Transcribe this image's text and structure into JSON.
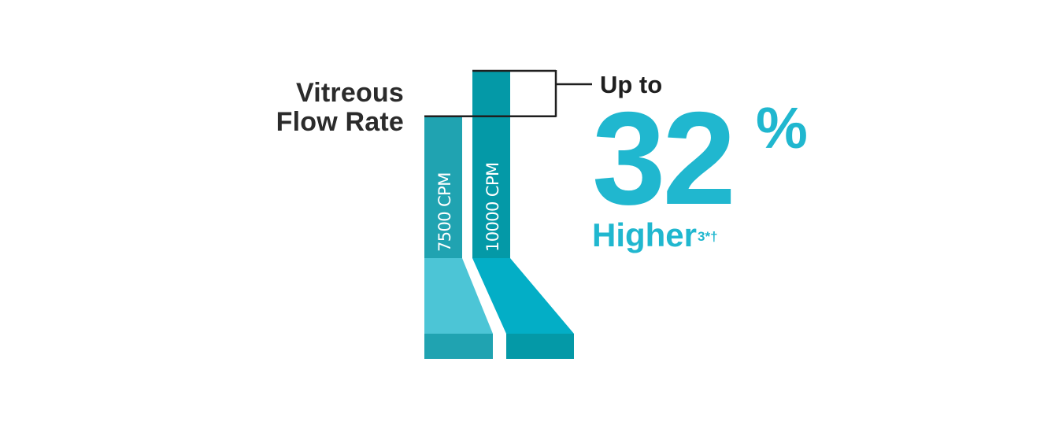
{
  "chart_data": {
    "type": "bar",
    "ylabel": [
      "Vitreous",
      "Flow Rate"
    ],
    "categories": [
      "7500 CPM",
      "10000 CPM"
    ],
    "values": [
      100,
      132
    ],
    "ylim": [
      0,
      132
    ],
    "grid": false,
    "colors": {
      "bar_dark": [
        "#20a3b1",
        "#0499a7"
      ],
      "bar_light": [
        "#4cc5d6",
        "#03aec6"
      ],
      "base": [
        "#20a3b1",
        "#0499a7"
      ],
      "accent": "#20b7cf",
      "bracket": "#1f1f1f"
    },
    "annotation": {
      "prefix": "Up to",
      "value": "32",
      "unit": "%",
      "suffix": "Higher",
      "footnote": "3*†"
    }
  }
}
